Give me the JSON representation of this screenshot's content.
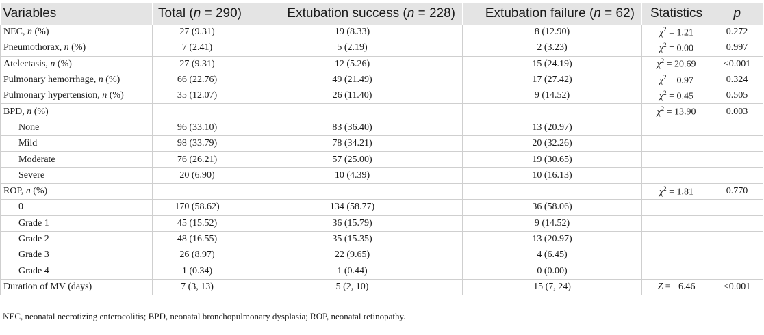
{
  "header": {
    "variables": "Variables",
    "total": "Total (n = 290)",
    "success": "Extubation success (n = 228)",
    "failure": "Extubation failure (n = 62)",
    "statistics": "Statistics",
    "p": "p"
  },
  "rows": [
    {
      "label": "NEC, n (%)",
      "total": "27 (9.31)",
      "success": "19 (8.33)",
      "failure": "8 (12.90)",
      "stat": "χ2 = 1.21",
      "p": "0.272",
      "indent": false
    },
    {
      "label": "Pneumothorax, n (%)",
      "total": "7 (2.41)",
      "success": "5 (2.19)",
      "failure": "2 (3.23)",
      "stat": "χ2 = 0.00",
      "p": "0.997",
      "indent": false
    },
    {
      "label": "Atelectasis, n (%)",
      "total": "27 (9.31)",
      "success": "12 (5.26)",
      "failure": "15 (24.19)",
      "stat": "χ2 = 20.69",
      "p": "<0.001",
      "indent": false
    },
    {
      "label": "Pulmonary hemorrhage, n (%)",
      "total": "66 (22.76)",
      "success": "49 (21.49)",
      "failure": "17 (27.42)",
      "stat": "χ2 = 0.97",
      "p": "0.324",
      "indent": false
    },
    {
      "label": "Pulmonary hypertension, n (%)",
      "total": "35 (12.07)",
      "success": "26 (11.40)",
      "failure": "9 (14.52)",
      "stat": "χ2 = 0.45",
      "p": "0.505",
      "indent": false
    },
    {
      "label": "BPD, n (%)",
      "total": "",
      "success": "",
      "failure": "",
      "stat": "χ2 = 13.90",
      "p": "0.003",
      "indent": false
    },
    {
      "label": "None",
      "total": "96 (33.10)",
      "success": "83 (36.40)",
      "failure": "13 (20.97)",
      "stat": "",
      "p": "",
      "indent": true
    },
    {
      "label": "Mild",
      "total": "98 (33.79)",
      "success": "78 (34.21)",
      "failure": "20 (32.26)",
      "stat": "",
      "p": "",
      "indent": true
    },
    {
      "label": "Moderate",
      "total": "76 (26.21)",
      "success": "57 (25.00)",
      "failure": "19 (30.65)",
      "stat": "",
      "p": "",
      "indent": true
    },
    {
      "label": "Severe",
      "total": "20 (6.90)",
      "success": "10 (4.39)",
      "failure": "10 (16.13)",
      "stat": "",
      "p": "",
      "indent": true
    },
    {
      "label": "ROP, n (%)",
      "total": "",
      "success": "",
      "failure": "",
      "stat": "χ2 = 1.81",
      "p": "0.770",
      "indent": false
    },
    {
      "label": "0",
      "total": "170 (58.62)",
      "success": "134 (58.77)",
      "failure": "36 (58.06)",
      "stat": "",
      "p": "",
      "indent": true
    },
    {
      "label": "Grade 1",
      "total": "45 (15.52)",
      "success": "36 (15.79)",
      "failure": "9 (14.52)",
      "stat": "",
      "p": "",
      "indent": true
    },
    {
      "label": "Grade 2",
      "total": "48 (16.55)",
      "success": "35 (15.35)",
      "failure": "13 (20.97)",
      "stat": "",
      "p": "",
      "indent": true
    },
    {
      "label": "Grade 3",
      "total": "26 (8.97)",
      "success": "22 (9.65)",
      "failure": "4 (6.45)",
      "stat": "",
      "p": "",
      "indent": true
    },
    {
      "label": "Grade 4",
      "total": "1 (0.34)",
      "success": "1 (0.44)",
      "failure": "0 (0.00)",
      "stat": "",
      "p": "",
      "indent": true
    },
    {
      "label": "Duration of MV (days)",
      "total": "7 (3, 13)",
      "success": "5 (2, 10)",
      "failure": "15 (7, 24)",
      "stat": "Z = −6.46",
      "p": "<0.001",
      "indent": false
    }
  ],
  "footnote": "NEC, neonatal necrotizing enterocolitis; BPD, neonatal bronchopulmonary dysplasia; ROP, neonatal retinopathy."
}
